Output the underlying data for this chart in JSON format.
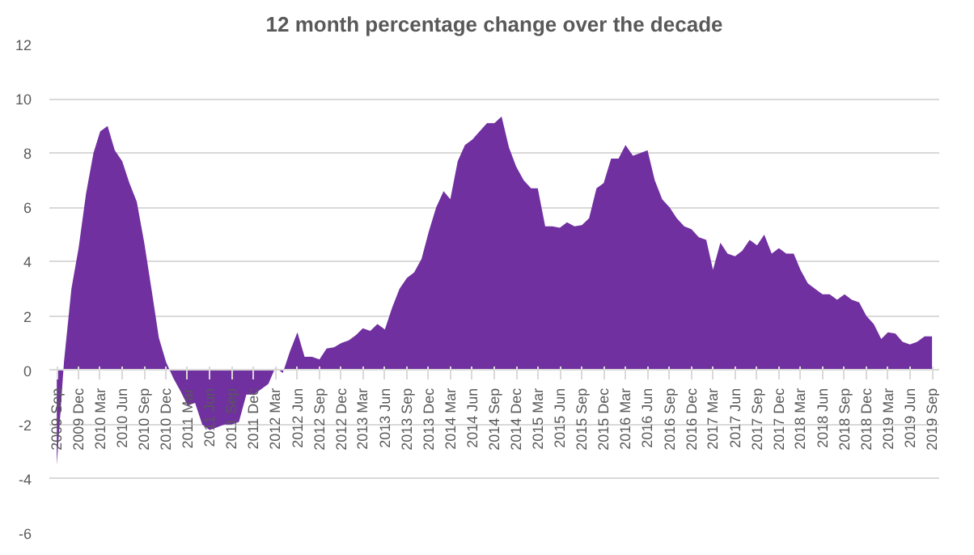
{
  "chart_data": {
    "type": "area",
    "title": "12 month percentage change over the decade",
    "x": [
      "2009-09",
      "2009-10",
      "2009-11",
      "2009-12",
      "2010-01",
      "2010-02",
      "2010-03",
      "2010-04",
      "2010-05",
      "2010-06",
      "2010-07",
      "2010-08",
      "2010-09",
      "2010-10",
      "2010-11",
      "2010-12",
      "2011-01",
      "2011-02",
      "2011-03",
      "2011-04",
      "2011-05",
      "2011-06",
      "2011-07",
      "2011-08",
      "2011-09",
      "2011-10",
      "2011-11",
      "2011-12",
      "2012-01",
      "2012-02",
      "2012-03",
      "2012-04",
      "2012-05",
      "2012-06",
      "2012-07",
      "2012-08",
      "2012-09",
      "2012-10",
      "2012-11",
      "2012-12",
      "2013-01",
      "2013-02",
      "2013-03",
      "2013-04",
      "2013-05",
      "2013-06",
      "2013-07",
      "2013-08",
      "2013-09",
      "2013-10",
      "2013-11",
      "2013-12",
      "2014-01",
      "2014-02",
      "2014-03",
      "2014-04",
      "2014-05",
      "2014-06",
      "2014-07",
      "2014-08",
      "2014-09",
      "2014-10",
      "2014-11",
      "2014-12",
      "2015-01",
      "2015-02",
      "2015-03",
      "2015-04",
      "2015-05",
      "2015-06",
      "2015-07",
      "2015-08",
      "2015-09",
      "2015-10",
      "2015-11",
      "2015-12",
      "2016-01",
      "2016-02",
      "2016-03",
      "2016-04",
      "2016-05",
      "2016-06",
      "2016-07",
      "2016-08",
      "2016-09",
      "2016-10",
      "2016-11",
      "2016-12",
      "2017-01",
      "2017-02",
      "2017-03",
      "2017-04",
      "2017-05",
      "2017-06",
      "2017-07",
      "2017-08",
      "2017-09",
      "2017-10",
      "2017-11",
      "2017-12",
      "2018-01",
      "2018-02",
      "2018-03",
      "2018-04",
      "2018-05",
      "2018-06",
      "2018-07",
      "2018-08",
      "2018-09",
      "2018-10",
      "2018-11",
      "2018-12",
      "2019-01",
      "2019-02",
      "2019-03",
      "2019-04",
      "2019-05",
      "2019-06",
      "2019-07",
      "2019-08",
      "2019-09"
    ],
    "series": [
      {
        "color": "#7030a0",
        "values": [
          -3.5,
          0.3,
          3.0,
          4.5,
          6.5,
          8.0,
          8.8,
          9.0,
          8.1,
          7.7,
          6.9,
          6.2,
          4.7,
          3.0,
          1.2,
          0.3,
          -0.3,
          -0.8,
          -1.3,
          -1.2,
          -2.0,
          -2.2,
          -2.1,
          -2.0,
          -2.0,
          -1.9,
          -0.9,
          -0.9,
          -0.7,
          -0.5,
          0.1,
          -0.1,
          0.7,
          1.4,
          0.5,
          0.5,
          0.4,
          0.8,
          0.85,
          1.0,
          1.1,
          1.3,
          1.55,
          1.45,
          1.7,
          1.5,
          2.3,
          3.0,
          3.4,
          3.6,
          4.1,
          5.1,
          6.0,
          6.6,
          6.3,
          7.7,
          8.3,
          8.5,
          8.8,
          9.1,
          9.1,
          9.35,
          8.2,
          7.5,
          7.0,
          6.7,
          6.7,
          5.3,
          5.3,
          5.25,
          5.45,
          5.3,
          5.35,
          5.6,
          6.7,
          6.9,
          7.8,
          7.8,
          8.3,
          7.9,
          8.0,
          8.1,
          7.0,
          6.3,
          6.0,
          5.6,
          5.3,
          5.2,
          4.9,
          4.8,
          3.7,
          4.7,
          4.3,
          4.2,
          4.4,
          4.8,
          4.6,
          5.0,
          4.3,
          4.5,
          4.3,
          4.3,
          3.7,
          3.2,
          3.0,
          2.8,
          2.8,
          2.6,
          2.8,
          2.6,
          2.5,
          2.0,
          1.7,
          1.15,
          1.4,
          1.35,
          1.05,
          0.95,
          1.05,
          1.25,
          1.25
        ]
      }
    ],
    "xlim": [
      "2009-08",
      "2019-10"
    ],
    "xticks": [
      {
        "value": "2009-09",
        "label": "2009 Sep"
      },
      {
        "value": "2009-12",
        "label": "2009 Dec"
      },
      {
        "value": "2010-03",
        "label": "2010 Mar"
      },
      {
        "value": "2010-06",
        "label": "2010 Jun"
      },
      {
        "value": "2010-09",
        "label": "2010 Sep"
      },
      {
        "value": "2010-12",
        "label": "2010 Dec"
      },
      {
        "value": "2011-03",
        "label": "2011 Mar"
      },
      {
        "value": "2011-06",
        "label": "2011 Jun"
      },
      {
        "value": "2011-09",
        "label": "2011 Sep"
      },
      {
        "value": "2011-12",
        "label": "2011 Dec"
      },
      {
        "value": "2012-03",
        "label": "2012 Mar"
      },
      {
        "value": "2012-06",
        "label": "2012 Jun"
      },
      {
        "value": "2012-09",
        "label": "2012 Sep"
      },
      {
        "value": "2012-12",
        "label": "2012 Dec"
      },
      {
        "value": "2013-03",
        "label": "2013 Mar"
      },
      {
        "value": "2013-06",
        "label": "2013 Jun"
      },
      {
        "value": "2013-09",
        "label": "2013 Sep"
      },
      {
        "value": "2013-12",
        "label": "2013 Dec"
      },
      {
        "value": "2014-03",
        "label": "2014 Mar"
      },
      {
        "value": "2014-06",
        "label": "2014 Jun"
      },
      {
        "value": "2014-09",
        "label": "2014 Sep"
      },
      {
        "value": "2014-12",
        "label": "2014 Dec"
      },
      {
        "value": "2015-03",
        "label": "2015 Mar"
      },
      {
        "value": "2015-06",
        "label": "2015 Jun"
      },
      {
        "value": "2015-09",
        "label": "2015 Sep"
      },
      {
        "value": "2015-12",
        "label": "2015 Dec"
      },
      {
        "value": "2016-03",
        "label": "2016 Mar"
      },
      {
        "value": "2016-06",
        "label": "2016 Jun"
      },
      {
        "value": "2016-09",
        "label": "2016 Sep"
      },
      {
        "value": "2016-12",
        "label": "2016 Dec"
      },
      {
        "value": "2017-03",
        "label": "2017 Mar"
      },
      {
        "value": "2017-06",
        "label": "2017 Jun"
      },
      {
        "value": "2017-09",
        "label": "2017 Sep"
      },
      {
        "value": "2017-12",
        "label": "2017 Dec"
      },
      {
        "value": "2018-03",
        "label": "2018 Mar"
      },
      {
        "value": "2018-06",
        "label": "2018 Jun"
      },
      {
        "value": "2018-09",
        "label": "2018 Sep"
      },
      {
        "value": "2018-12",
        "label": "2018 Dec"
      },
      {
        "value": "2019-03",
        "label": "2019 Mar"
      },
      {
        "value": "2019-06",
        "label": "2019 Jun"
      },
      {
        "value": "2019-09",
        "label": "2019 Sep"
      }
    ],
    "ylim": [
      -6,
      12
    ],
    "yticks": [
      -6,
      -4,
      -2,
      0,
      2,
      4,
      6,
      8,
      10,
      12
    ],
    "grid": "y"
  }
}
